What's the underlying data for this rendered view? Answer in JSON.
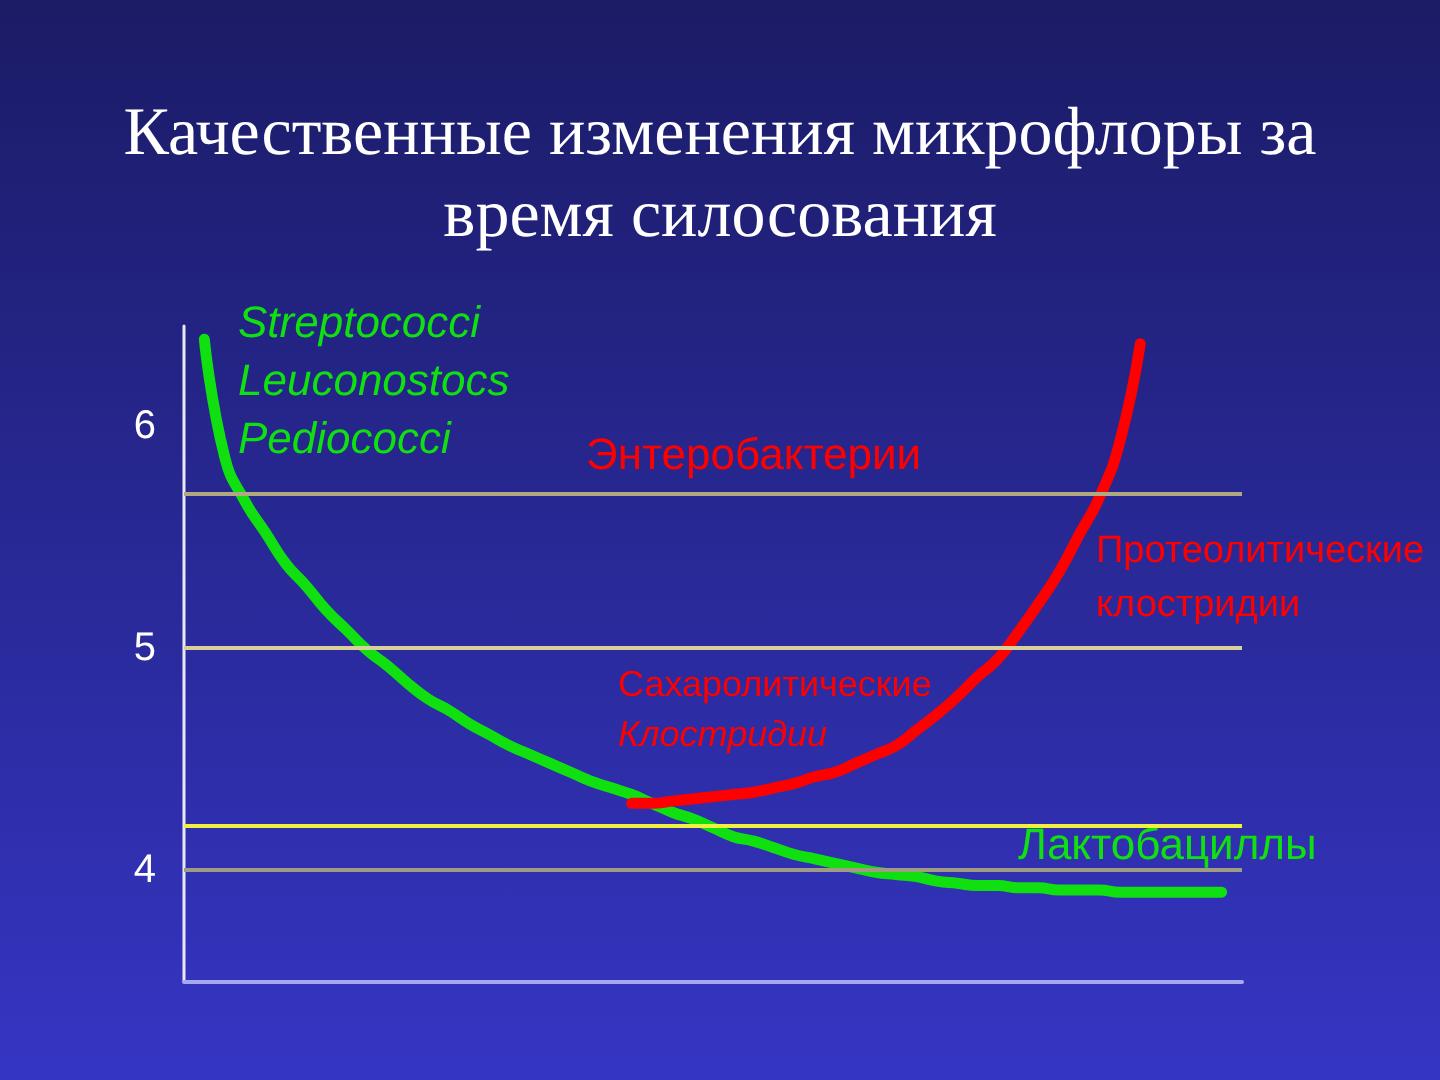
{
  "chart_data": {
    "type": "line",
    "title": "Качественные изменения микрофлоры за время силосования",
    "categories": [
      null,
      null,
      null,
      null,
      null,
      null,
      null,
      null,
      null,
      null,
      null,
      null,
      null,
      null,
      null,
      null,
      null,
      null,
      null,
      null,
      null,
      null,
      null,
      null,
      null,
      null,
      null,
      null,
      null,
      null,
      null,
      null,
      null,
      null,
      null,
      null,
      null,
      null,
      null,
      null,
      null,
      null,
      null,
      null,
      null,
      null,
      null,
      null,
      null,
      null,
      null,
      null,
      null
    ],
    "series": [
      {
        "color": "#10e010",
        "values": [
          null,
          6.39,
          5.86,
          5.66,
          5.52,
          5.38,
          5.28,
          5.17,
          5.08,
          4.99,
          4.92,
          4.84,
          4.77,
          4.72,
          4.66,
          4.61,
          4.56,
          4.52,
          4.48,
          4.44,
          4.4,
          4.37,
          4.34,
          4.3,
          4.26,
          4.23,
          4.19,
          4.15,
          4.13,
          4.1,
          4.07,
          4.05,
          4.03,
          4.01,
          3.99,
          3.98,
          3.97,
          3.95,
          3.94,
          3.93,
          3.93,
          3.92,
          3.92,
          3.91,
          3.91,
          3.91,
          3.9,
          3.9,
          3.9,
          3.9,
          3.9,
          3.9,
          null
        ]
      },
      {
        "color": "#ff0000",
        "values": [
          null,
          null,
          null,
          null,
          null,
          null,
          null,
          null,
          null,
          null,
          null,
          null,
          null,
          null,
          null,
          null,
          null,
          null,
          null,
          null,
          null,
          null,
          4.3,
          4.3,
          4.31,
          4.32,
          4.33,
          4.34,
          4.35,
          4.37,
          4.39,
          4.42,
          4.44,
          4.48,
          4.52,
          4.56,
          4.63,
          4.7,
          4.78,
          4.87,
          4.95,
          5.07,
          5.2,
          5.34,
          5.51,
          5.68,
          5.93,
          6.37,
          null,
          null,
          null,
          null,
          null
        ]
      }
    ],
    "ylim": [
      3.5,
      6.45
    ],
    "yticks": [
      4,
      5,
      6
    ],
    "grid": false,
    "marker": "none",
    "line_style": "solid",
    "tick_labels": "y",
    "ref_lines": [
      {
        "axis": "y",
        "value": 5.7,
        "color": "#b0a880"
      },
      {
        "axis": "y",
        "value": 5,
        "color": "#d8d098"
      },
      {
        "axis": "y",
        "value": 4.2,
        "color": "#f0f040"
      },
      {
        "axis": "y",
        "value": 4,
        "color": "#a09c84"
      }
    ],
    "annotations": [
      "Streptococci",
      "Leuconostocs",
      "Pediococci",
      "Энтеробактерии",
      "Протеолитические\nклостридии",
      "Сахаролитические",
      "Клостридии",
      "Лактобациллы"
    ]
  }
}
